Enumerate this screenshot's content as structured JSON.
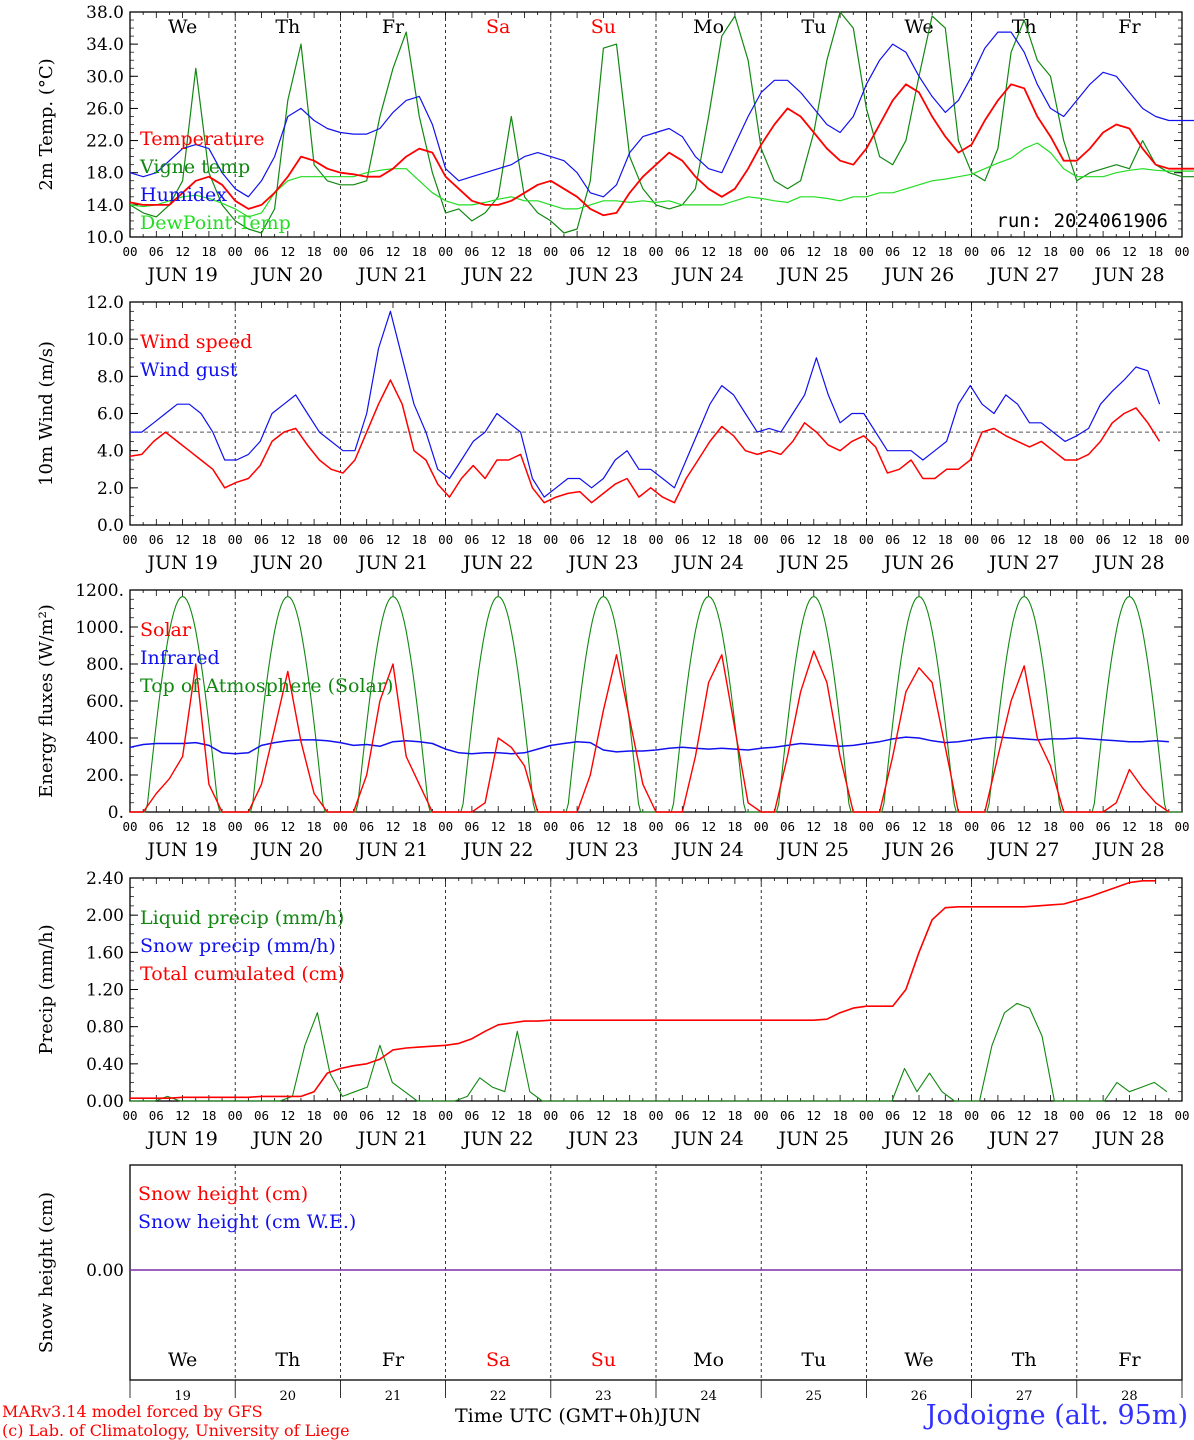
{
  "colors": {
    "red": "#ff0000",
    "green": "#118811",
    "blue": "#1111ee",
    "lightgreen": "#22dd22",
    "weekend": "#ff0000",
    "snowcombo": "#7b2fa8"
  },
  "chart_data": [
    {
      "type": "line",
      "id": "temperature",
      "ylabel": "2m Temp. (°C)",
      "ylim": [
        10,
        38
      ],
      "yticks": [
        "10.0",
        "14.0",
        "18.0",
        "22.0",
        "26.0",
        "30.0",
        "34.0",
        "38.0"
      ],
      "annotation": "run: 2024061906",
      "day_labels": [
        "We",
        "Th",
        "Fr",
        "Sa",
        "Su",
        "Mo",
        "Tu",
        "We",
        "Th",
        "Fr"
      ],
      "weekend_days": [
        3,
        4
      ],
      "x_hours_per_point": 3,
      "series": [
        {
          "name": "Temperature",
          "color": "red",
          "values": [
            14.3,
            14,
            14,
            14,
            15.5,
            17,
            17.5,
            16.5,
            14.5,
            13.5,
            14,
            15.5,
            17.5,
            20,
            19.5,
            18.5,
            18,
            17.8,
            17.5,
            17.5,
            18.5,
            20,
            21,
            20.5,
            17.5,
            16,
            14.5,
            14,
            14,
            14.5,
            15.5,
            16.5,
            17,
            16,
            15,
            13.5,
            12.7,
            13,
            15.5,
            17.5,
            19,
            20.5,
            19.5,
            17.5,
            16,
            15,
            16,
            18.5,
            21.5,
            24,
            26,
            25,
            23,
            21,
            19.5,
            19,
            21,
            24,
            27,
            29,
            28,
            25,
            22.5,
            20.5,
            21.5,
            24.5,
            27,
            29,
            28.5,
            25,
            22.5,
            19.5,
            19.5,
            21,
            23,
            24,
            23.5,
            21,
            19,
            18.5,
            18.5,
            18.5,
            18.5,
            18
          ]
        },
        {
          "name": "Vigne temp",
          "color": "green",
          "values": [
            14,
            13,
            12.5,
            14,
            17,
            31,
            18,
            14,
            12,
            11,
            10.5,
            13.5,
            27,
            34,
            19,
            17,
            16.5,
            16.5,
            17,
            25,
            31,
            35.5,
            25,
            18,
            13,
            13.5,
            12,
            13,
            15,
            25,
            15,
            13,
            12,
            10.5,
            11,
            17,
            33.5,
            34,
            20,
            16,
            14,
            13.5,
            14,
            16,
            25,
            35,
            37.5,
            32,
            21,
            17,
            16,
            17,
            23,
            32,
            38,
            36,
            26,
            20,
            19,
            22,
            30,
            37.5,
            36,
            22,
            18,
            17,
            21,
            33,
            37,
            32,
            30,
            22,
            17,
            18,
            18.5,
            19,
            18.5,
            22,
            19,
            18,
            17.5,
            17.5,
            17.5,
            17
          ]
        },
        {
          "name": "Humidex",
          "color": "blue",
          "values": [
            18,
            17.5,
            18,
            19.5,
            21,
            21.5,
            21,
            18,
            16,
            15,
            17,
            20,
            25,
            26,
            24.5,
            23.5,
            23,
            22.8,
            22.8,
            23.5,
            25.5,
            27,
            27.5,
            24,
            18.5,
            17,
            17.5,
            18,
            18.5,
            19,
            20,
            20.5,
            20,
            19.5,
            18,
            15.5,
            15,
            16.5,
            20.5,
            22.5,
            23,
            23.5,
            22.5,
            20,
            18.5,
            18,
            21.5,
            25,
            28,
            29.5,
            29.5,
            28,
            26,
            24,
            23,
            25,
            29,
            32,
            34,
            33,
            30,
            27.5,
            25.5,
            27,
            30,
            33.5,
            35.5,
            35.5,
            33,
            29,
            26,
            25,
            27,
            29,
            30.5,
            30,
            28,
            26,
            25,
            24.5,
            24.5,
            24.5,
            24.5,
            24
          ]
        },
        {
          "name": "DewPoint Temp",
          "color": "lightgreen",
          "values": [
            14,
            13.8,
            14,
            14.5,
            15,
            15.2,
            14.8,
            14.2,
            13.5,
            12.5,
            13,
            15.5,
            17,
            17.5,
            17.5,
            17.5,
            17.5,
            17.5,
            18,
            18.3,
            18.5,
            18.5,
            17,
            15.5,
            14.5,
            14,
            14,
            14.3,
            14.7,
            15,
            14.5,
            14.5,
            14,
            13.5,
            13.5,
            14,
            14.5,
            14.5,
            14.3,
            14.5,
            14.3,
            14.5,
            14,
            14,
            14,
            14,
            14.5,
            15,
            14.8,
            14.5,
            14.3,
            15,
            15,
            14.8,
            14.5,
            15,
            15,
            15.5,
            15.5,
            16,
            16.5,
            17,
            17.2,
            17.5,
            17.8,
            18.5,
            19.2,
            19.8,
            21,
            21.7,
            20.5,
            18.5,
            17.5,
            17.5,
            17.5,
            18,
            18.3,
            18.5,
            18.3,
            18.2,
            18.2,
            18.2,
            18.2,
            18
          ]
        }
      ]
    },
    {
      "type": "line",
      "id": "wind",
      "ylabel": "10m Wind (m/s)",
      "ylim": [
        0,
        12
      ],
      "yticks": [
        "0.0",
        "2.0",
        "4.0",
        "6.0",
        "8.0",
        "10.0",
        "12.0"
      ],
      "reference_line": 5,
      "x_hours_per_point": 3,
      "series": [
        {
          "name": "Wind speed",
          "color": "red",
          "values": [
            3.7,
            3.8,
            4.5,
            5,
            4.5,
            4,
            3.5,
            3,
            2,
            2.3,
            2.5,
            3.2,
            4.5,
            5,
            5.2,
            4.3,
            3.5,
            3,
            2.8,
            3.5,
            5,
            6.5,
            7.8,
            6.5,
            4,
            3.5,
            2.2,
            1.5,
            2.5,
            3.2,
            2.5,
            3.5,
            3.5,
            3.8,
            2,
            1.2,
            1.5,
            1.7,
            1.8,
            1.2,
            1.7,
            2.2,
            2.5,
            1.5,
            2,
            1.5,
            1.2,
            2.5,
            3.5,
            4.5,
            5.3,
            4.8,
            4,
            3.8,
            4,
            3.8,
            4.5,
            5.5,
            5,
            4.3,
            4,
            4.5,
            4.8,
            4.2,
            2.8,
            3,
            3.5,
            2.5,
            2.5,
            3,
            3,
            3.5,
            5,
            5.2,
            4.8,
            4.5,
            4.2,
            4.5,
            4,
            3.5,
            3.5,
            3.8,
            4.5,
            5.5,
            6,
            6.3,
            5.5,
            4.5
          ]
        },
        {
          "name": "Wind gust",
          "color": "blue",
          "values": [
            5,
            5,
            5.5,
            6,
            6.5,
            6.5,
            6,
            5,
            3.5,
            3.5,
            3.8,
            4.5,
            6,
            6.5,
            7,
            6,
            5,
            4.5,
            4,
            4,
            6,
            9.5,
            11.5,
            9,
            6.5,
            5,
            3,
            2.5,
            3.5,
            4.5,
            5,
            6,
            5.5,
            5,
            2.5,
            1.5,
            2,
            2.5,
            2.5,
            2,
            2.5,
            3.5,
            4,
            3,
            3,
            2.5,
            2,
            3.5,
            5,
            6.5,
            7.5,
            7,
            6,
            5,
            5.2,
            5,
            6,
            7,
            9,
            7,
            5.5,
            6,
            6,
            5,
            4,
            4,
            4,
            3.5,
            4,
            4.5,
            6.5,
            7.5,
            6.5,
            6,
            7,
            6.5,
            5.5,
            5.5,
            5,
            4.5,
            4.8,
            5.2,
            6.5,
            7.2,
            7.8,
            8.5,
            8.3,
            6.5
          ]
        }
      ]
    },
    {
      "type": "line",
      "id": "energy",
      "ylabel": "Energy fluxes (W/m²)",
      "ylim": [
        0,
        1200
      ],
      "yticks": [
        "0.",
        "200.",
        "400.",
        "600.",
        "800.",
        "1000.",
        "1200."
      ],
      "x_hours_per_point": 3,
      "series": [
        {
          "name": "Solar",
          "color": "red",
          "values": [
            0,
            0,
            100,
            180,
            300,
            800,
            150,
            0,
            0,
            0,
            150,
            450,
            760,
            380,
            100,
            0,
            0,
            0,
            200,
            600,
            800,
            300,
            150,
            0,
            0,
            0,
            0,
            50,
            400,
            350,
            250,
            0,
            0,
            0,
            0,
            200,
            550,
            850,
            500,
            150,
            0,
            0,
            0,
            300,
            700,
            850,
            450,
            50,
            0,
            0,
            300,
            650,
            870,
            700,
            300,
            0,
            0,
            0,
            300,
            650,
            780,
            700,
            350,
            0,
            0,
            0,
            300,
            600,
            790,
            400,
            250,
            0,
            0,
            0,
            0,
            50,
            230,
            130,
            50,
            0
          ]
        },
        {
          "name": "Infrared",
          "color": "blue",
          "values": [
            350,
            365,
            370,
            370,
            370,
            375,
            360,
            320,
            315,
            320,
            360,
            375,
            385,
            390,
            390,
            385,
            375,
            360,
            365,
            355,
            380,
            385,
            380,
            370,
            340,
            320,
            315,
            320,
            320,
            315,
            320,
            340,
            360,
            370,
            380,
            375,
            335,
            325,
            330,
            330,
            335,
            345,
            350,
            345,
            340,
            345,
            340,
            335,
            345,
            350,
            360,
            370,
            365,
            360,
            355,
            360,
            370,
            380,
            395,
            405,
            400,
            385,
            375,
            380,
            390,
            400,
            405,
            400,
            395,
            390,
            395,
            395,
            400,
            395,
            390,
            385,
            380,
            380,
            385,
            380
          ]
        },
        {
          "name": "Top of Atmosphere (Solar)",
          "color": "green",
          "values": []
        }
      ]
    },
    {
      "type": "line",
      "id": "precip",
      "ylabel": "Precip (mm/h)",
      "ylim": [
        0,
        2.4
      ],
      "yticks": [
        "0.00",
        "0.40",
        "0.80",
        "1.20",
        "1.60",
        "2.00",
        "2.40"
      ],
      "x_hours_per_point": 3,
      "series": [
        {
          "name": "Liquid precip (mm/h)",
          "color": "green",
          "values": [
            0,
            0,
            0,
            0.05,
            0,
            0,
            0,
            0,
            0,
            0,
            0,
            0,
            0,
            0.05,
            0.6,
            0.95,
            0.3,
            0.05,
            0.1,
            0.15,
            0.6,
            0.2,
            0.1,
            0,
            0,
            0,
            0,
            0.05,
            0.25,
            0.15,
            0.1,
            0.75,
            0.1,
            0,
            0,
            0,
            0,
            0,
            0,
            0,
            0,
            0,
            0,
            0,
            0,
            0,
            0,
            0,
            0,
            0,
            0,
            0,
            0,
            0,
            0,
            0,
            0,
            0,
            0,
            0,
            0,
            0,
            0.35,
            0.1,
            0.3,
            0.1,
            0,
            0,
            0,
            0.6,
            0.95,
            1.05,
            1.0,
            0.7,
            0,
            0,
            0,
            0,
            0,
            0.2,
            0.1,
            0.15,
            0.2,
            0.1
          ]
        },
        {
          "name": "Snow precip (mm/h)",
          "color": "blue",
          "values": []
        },
        {
          "name": "Total cumulated (cm)",
          "color": "red",
          "values": [
            0.03,
            0.03,
            0.03,
            0.03,
            0.04,
            0.04,
            0.04,
            0.04,
            0.04,
            0.04,
            0.05,
            0.05,
            0.05,
            0.05,
            0.1,
            0.3,
            0.35,
            0.38,
            0.4,
            0.45,
            0.55,
            0.57,
            0.58,
            0.59,
            0.6,
            0.62,
            0.67,
            0.75,
            0.82,
            0.84,
            0.86,
            0.86,
            0.87,
            0.87,
            0.87,
            0.87,
            0.87,
            0.87,
            0.87,
            0.87,
            0.87,
            0.87,
            0.87,
            0.87,
            0.87,
            0.87,
            0.87,
            0.87,
            0.87,
            0.87,
            0.87,
            0.87,
            0.87,
            0.88,
            0.95,
            1.0,
            1.02,
            1.02,
            1.02,
            1.2,
            1.6,
            1.95,
            2.08,
            2.09,
            2.09,
            2.09,
            2.09,
            2.09,
            2.09,
            2.1,
            2.11,
            2.12,
            2.16,
            2.2,
            2.25,
            2.3,
            2.35,
            2.37,
            2.37
          ]
        }
      ]
    },
    {
      "type": "line",
      "id": "snow",
      "ylabel": "Snow height (cm)",
      "yticks": [
        "0.00"
      ],
      "series": [
        {
          "name": "Snow height (cm)",
          "color": "red",
          "values": [
            0,
            0
          ]
        },
        {
          "name": "Snow height (cm W.E.)",
          "color": "blue",
          "values": [
            0,
            0
          ]
        }
      ]
    }
  ],
  "x_axis": {
    "hour_ticks": [
      "00",
      "06",
      "12",
      "18"
    ],
    "dates": [
      "JUN 19",
      "JUN 20",
      "JUN 21",
      "JUN 22",
      "JUN 23",
      "JUN 24",
      "JUN 25",
      "JUN 26",
      "JUN 27",
      "JUN 28"
    ],
    "day_numbers": [
      "19",
      "20",
      "21",
      "22",
      "23",
      "24",
      "25",
      "26",
      "27",
      "28"
    ],
    "xlabel": "Time UTC (GMT+0h)",
    "month": "JUN"
  },
  "footer": {
    "model": "MARv3.14 model forced by GFS",
    "copyright": "(c) Lab. of Climatology, University of Liege",
    "station": "Jodoigne (alt. 95m)"
  }
}
